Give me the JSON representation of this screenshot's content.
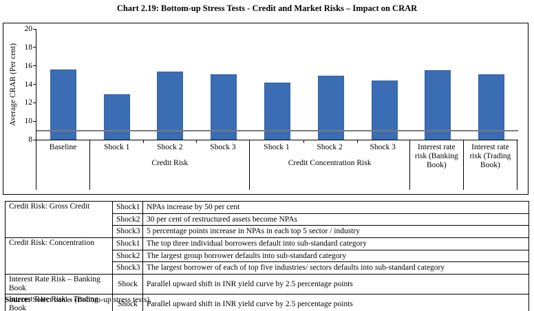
{
  "title": "Chart 2.19: Bottom-up Stress Tests - Credit and Market Risks – Impact on CRAR",
  "chart_data": {
    "type": "bar",
    "title": "Chart 2.19: Bottom-up Stress Tests - Credit and Market Risks – Impact on CRAR",
    "ylabel": "Average CRAR (Per cent)",
    "ylim": [
      8,
      20
    ],
    "yticks": [
      8,
      10,
      12,
      14,
      16,
      18,
      20
    ],
    "reference_line": 9,
    "bar_color": "#3A6DB3",
    "grid": false,
    "legend": "none",
    "groups": [
      {
        "label": "",
        "categories": [
          "Baseline"
        ],
        "values": [
          15.6
        ]
      },
      {
        "label": "Credit Risk",
        "categories": [
          "Shock 1",
          "Shock 2",
          "Shock 3"
        ],
        "values": [
          12.9,
          15.4,
          15.1
        ]
      },
      {
        "label": "Credit Concentration Risk",
        "categories": [
          "Shock 1",
          "Shock 2",
          "Shock 3"
        ],
        "values": [
          14.2,
          14.9,
          14.4
        ]
      },
      {
        "label": "",
        "categories": [
          "Interest rate risk (Banking Book)"
        ],
        "values": [
          15.5
        ]
      },
      {
        "label": "",
        "categories": [
          "Interest rate risk (Trading Book)"
        ],
        "values": [
          15.1
        ]
      }
    ]
  },
  "table": {
    "rows": [
      {
        "category": "Credit Risk: Gross Credit",
        "rowspan": 3,
        "shock": "Shock1",
        "description": "NPAs increase by 50 per cent"
      },
      {
        "shock": "Shock2",
        "description": "30 per cent of restructured assets become NPAs"
      },
      {
        "shock": "Shock3",
        "description": "5 percentage points increase in NPAs in each top 5 sector / industry"
      },
      {
        "category": "Credit Risk: Concentration",
        "rowspan": 3,
        "shock": "Shock1",
        "description": "The top three individual borrowers default into sub-standard category"
      },
      {
        "shock": "Shock2",
        "description": "The largest group borrower defaults into sub-standard category"
      },
      {
        "shock": "Shock3",
        "description": "The largest borrower of each of top five industries/ sectors defaults into sub-standard category"
      },
      {
        "category": "Interest Rate Risk – Banking Book",
        "rowspan": 1,
        "shock": "Shock",
        "description": "Parallel upward shift in INR yield curve by 2.5 percentage points"
      },
      {
        "category": "Interest Rate Risk – Trading Book",
        "rowspan": 1,
        "shock": "Shock",
        "description": "Parallel upward shift in INR yield curve by 2.5 percentage points"
      }
    ]
  },
  "source": {
    "label": "Source:",
    "text": " Select banks (Bottom-up stress tests)."
  }
}
